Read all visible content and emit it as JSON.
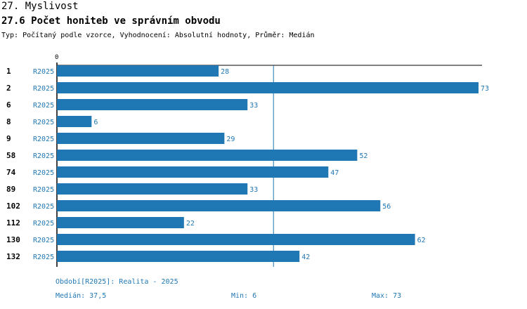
{
  "header": {
    "section": "27. Myslivost",
    "title": "27.6 Počet honiteb ve správním obvodu",
    "meta": "Typ: Počítaný podle vzorce, Vyhodnocení: Absolutní hodnoty, Průměr: Medián"
  },
  "chart_data": {
    "type": "bar",
    "orientation": "horizontal",
    "title": "27.6 Počet honiteb ve správním obvodu",
    "x_tick_labels": [
      "0"
    ],
    "xlim": [
      0,
      73
    ],
    "reference_line": {
      "name": "Medián",
      "value": 37.5
    },
    "period": "R2025",
    "categories": [
      "1",
      "2",
      "6",
      "8",
      "9",
      "58",
      "74",
      "89",
      "102",
      "112",
      "130",
      "132"
    ],
    "series": [
      {
        "name": "R2025",
        "values": [
          28,
          73,
          33,
          6,
          29,
          52,
          47,
          33,
          56,
          22,
          62,
          42
        ]
      }
    ],
    "colors": {
      "bar": "#1f77b4",
      "label": "#1f77b4",
      "axis": "#000000"
    }
  },
  "footer": {
    "period_legend": "Období[R2025]: Realita - 2025",
    "median": "Medián: 37,5",
    "min": "Min: 6",
    "max": "Max: 73"
  }
}
